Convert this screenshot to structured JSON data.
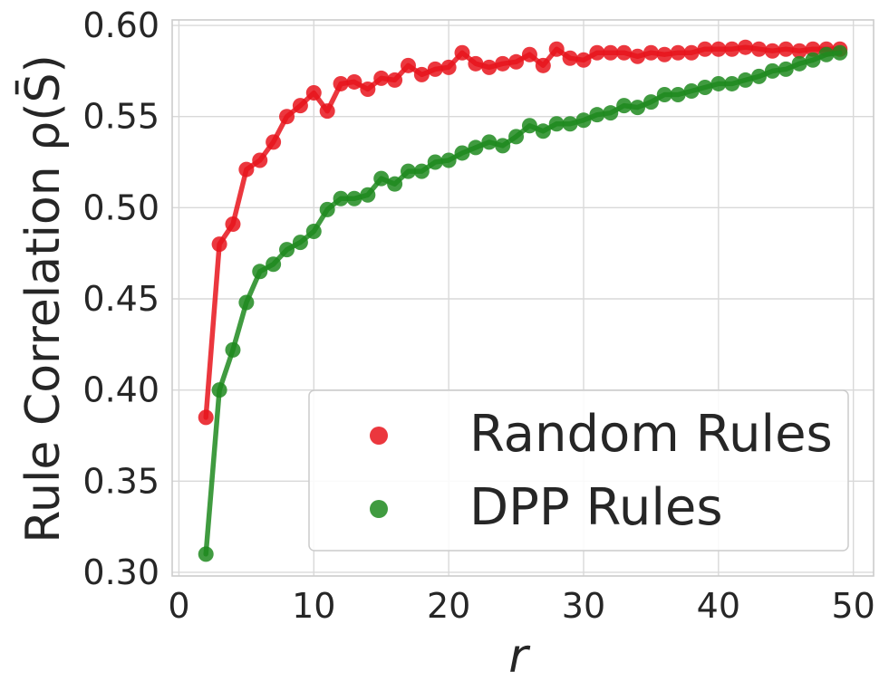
{
  "chart_data": {
    "type": "line",
    "xlabel": "r",
    "ylabel": "Rule Correlation ρ(S̄)",
    "xlim": [
      -0.5,
      51.5
    ],
    "ylim": [
      0.298,
      0.603
    ],
    "xticks": [
      0,
      10,
      20,
      30,
      40,
      50
    ],
    "yticks": [
      0.3,
      0.35,
      0.4,
      0.45,
      0.5,
      0.55,
      0.6
    ],
    "xtick_labels": [
      "0",
      "10",
      "20",
      "30",
      "40",
      "50"
    ],
    "ytick_labels": [
      "0.30",
      "0.35",
      "0.40",
      "0.45",
      "0.50",
      "0.55",
      "0.60"
    ],
    "grid": true,
    "legend_position": "lower-right",
    "x": [
      2,
      3,
      4,
      5,
      6,
      7,
      8,
      9,
      10,
      11,
      12,
      13,
      14,
      15,
      16,
      17,
      18,
      19,
      20,
      21,
      22,
      23,
      24,
      25,
      26,
      27,
      28,
      29,
      30,
      31,
      32,
      33,
      34,
      35,
      36,
      37,
      38,
      39,
      40,
      41,
      42,
      43,
      44,
      45,
      46,
      47,
      48,
      49
    ],
    "series": [
      {
        "name": "Random Rules",
        "color": "#e8141c",
        "values": [
          0.385,
          0.48,
          0.491,
          0.521,
          0.526,
          0.536,
          0.55,
          0.556,
          0.563,
          0.553,
          0.568,
          0.569,
          0.565,
          0.571,
          0.57,
          0.578,
          0.573,
          0.576,
          0.577,
          0.585,
          0.579,
          0.577,
          0.579,
          0.58,
          0.584,
          0.578,
          0.587,
          0.582,
          0.581,
          0.585,
          0.585,
          0.585,
          0.583,
          0.585,
          0.584,
          0.585,
          0.585,
          0.587,
          0.587,
          0.587,
          0.588,
          0.587,
          0.586,
          0.587,
          0.586,
          0.587,
          0.587,
          0.587
        ]
      },
      {
        "name": "DPP Rules",
        "color": "#1e8a1e",
        "values": [
          0.31,
          0.4,
          0.422,
          0.448,
          0.465,
          0.469,
          0.477,
          0.481,
          0.487,
          0.499,
          0.505,
          0.505,
          0.507,
          0.516,
          0.513,
          0.52,
          0.52,
          0.525,
          0.526,
          0.53,
          0.533,
          0.536,
          0.534,
          0.539,
          0.545,
          0.542,
          0.546,
          0.546,
          0.548,
          0.551,
          0.552,
          0.556,
          0.555,
          0.558,
          0.562,
          0.562,
          0.564,
          0.566,
          0.568,
          0.568,
          0.57,
          0.572,
          0.575,
          0.576,
          0.579,
          0.581,
          0.584,
          0.585
        ]
      }
    ]
  }
}
